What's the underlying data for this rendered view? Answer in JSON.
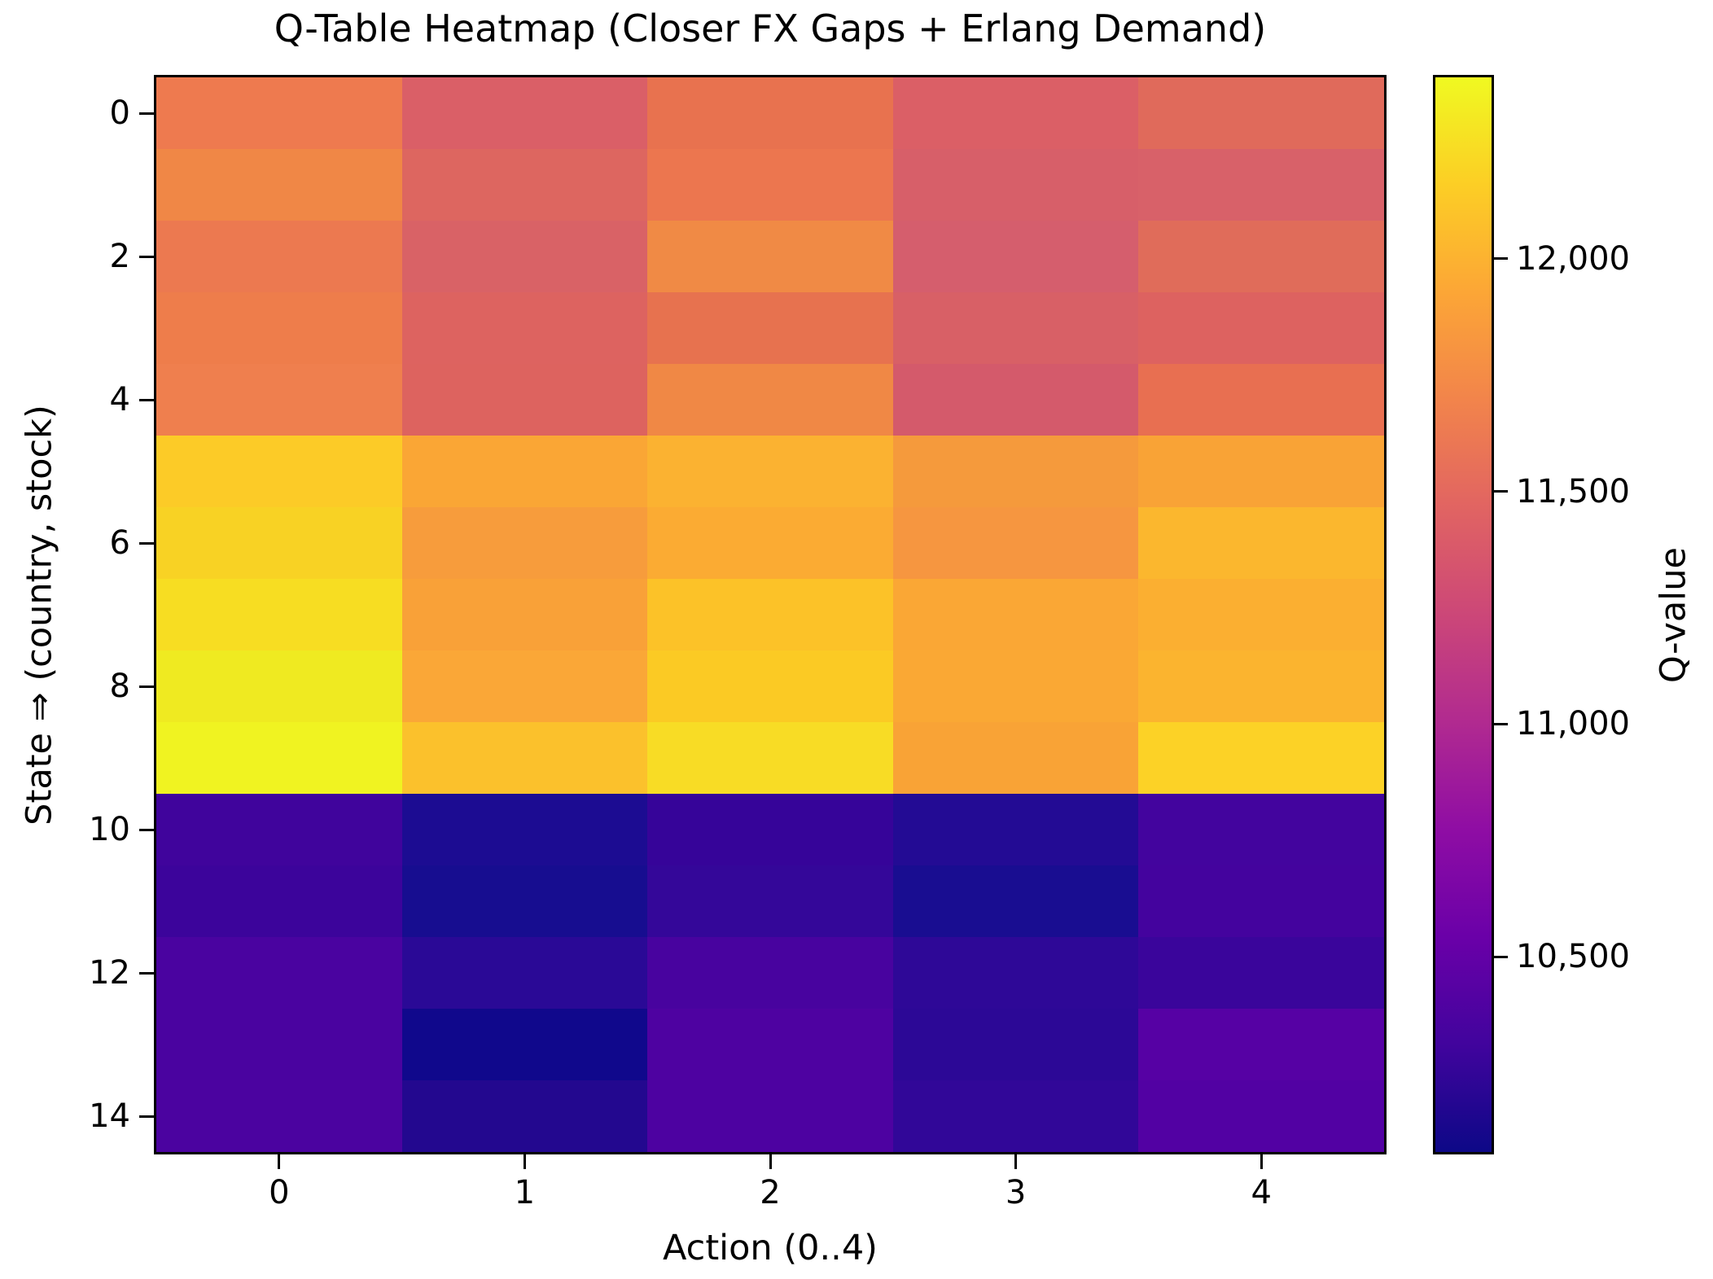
{
  "chart_data": {
    "type": "heatmap",
    "title": "Q-Table Heatmap (Closer FX Gaps + Erlang Demand)",
    "xlabel": "Action (0..4)",
    "ylabel": "State ⇒ (country, stock)",
    "colorbar_label": "Q-value",
    "colormap": "plasma",
    "n_rows": 15,
    "n_cols": 5,
    "x_tick_labels": [
      "0",
      "1",
      "2",
      "3",
      "4"
    ],
    "y_tick_labels": [
      "0",
      "2",
      "4",
      "6",
      "8",
      "10",
      "12",
      "14"
    ],
    "y_tick_rows": [
      0,
      2,
      4,
      6,
      8,
      10,
      12,
      14
    ],
    "colorbar_ticks": [
      {
        "value": 12000,
        "label": "12,000"
      },
      {
        "value": 11500,
        "label": "11,500"
      },
      {
        "value": 11000,
        "label": "11,000"
      },
      {
        "value": 10500,
        "label": "10,500"
      }
    ],
    "vmin": 10080,
    "vmax": 12390,
    "values": [
      [
        11620,
        11390,
        11560,
        11410,
        11470
      ],
      [
        11700,
        11470,
        11590,
        11360,
        11370
      ],
      [
        11600,
        11390,
        11720,
        11340,
        11490
      ],
      [
        11640,
        11440,
        11570,
        11370,
        11430
      ],
      [
        11650,
        11440,
        11690,
        11320,
        11560
      ],
      [
        12140,
        11930,
        12000,
        11850,
        11900
      ],
      [
        12180,
        11860,
        11950,
        11820,
        12030
      ],
      [
        12240,
        11890,
        12090,
        11930,
        11970
      ],
      [
        12310,
        11930,
        12130,
        11940,
        12010
      ],
      [
        12380,
        12080,
        12230,
        11900,
        12180
      ],
      [
        10290,
        10140,
        10260,
        10170,
        10320
      ],
      [
        10290,
        10120,
        10250,
        10130,
        10320
      ],
      [
        10360,
        10210,
        10350,
        10220,
        10280
      ],
      [
        10360,
        10100,
        10380,
        10220,
        10430
      ],
      [
        10370,
        10170,
        10380,
        10240,
        10400
      ]
    ],
    "cell_colors": [
      [
        "#ee7a4f",
        "#da5f67",
        "#e8724f",
        "#db5f66",
        "#e06a5b"
      ],
      [
        "#f08746",
        "#dd6660",
        "#ec764f",
        "#d75f69",
        "#d86169"
      ],
      [
        "#ec7950",
        "#d96266",
        "#f08a45",
        "#d55e6d",
        "#e06c5a"
      ],
      [
        "#ee7d4b",
        "#dd6360",
        "#e7724f",
        "#d86066",
        "#dd6260"
      ],
      [
        "#ef7f4e",
        "#dd635f",
        "#f08845",
        "#d45a6b",
        "#e86f51"
      ],
      [
        "#fccb27",
        "#faa635",
        "#fbb231",
        "#f59a3c",
        "#f9a336"
      ],
      [
        "#f8d224",
        "#f79c3c",
        "#fbab33",
        "#f69640",
        "#fbb72e"
      ],
      [
        "#f7dd22",
        "#f9a138",
        "#fcc228",
        "#faa735",
        "#fbaf31"
      ],
      [
        "#efea21",
        "#faa737",
        "#fbca24",
        "#faa834",
        "#fbb42f"
      ],
      [
        "#f0f321",
        "#fbc12c",
        "#f8dc25",
        "#f9a336",
        "#fcd226"
      ],
      [
        "#40049c",
        "#1c0c92",
        "#360499",
        "#230b94",
        "#43049e"
      ],
      [
        "#3c049b",
        "#170d90",
        "#340799",
        "#190d91",
        "#44039e"
      ],
      [
        "#4a03a0",
        "#2a0996",
        "#48039f",
        "#2e0897",
        "#3a059b"
      ],
      [
        "#4a03a0",
        "#10088c",
        "#4e02a1",
        "#2c0896",
        "#5601a4"
      ],
      [
        "#4b03a0",
        "#23088f",
        "#4d02a1",
        "#310798",
        "#5201a3"
      ]
    ],
    "colormap_stops": [
      "#f0f921",
      "#fcce25",
      "#fca636",
      "#f2844b",
      "#e16462",
      "#cc4778",
      "#b12a90",
      "#8f0da4",
      "#6a00a8",
      "#41049d",
      "#0d0887"
    ]
  },
  "colors": {
    "background": "#ffffff",
    "axis": "#000000",
    "text": "#000000"
  }
}
